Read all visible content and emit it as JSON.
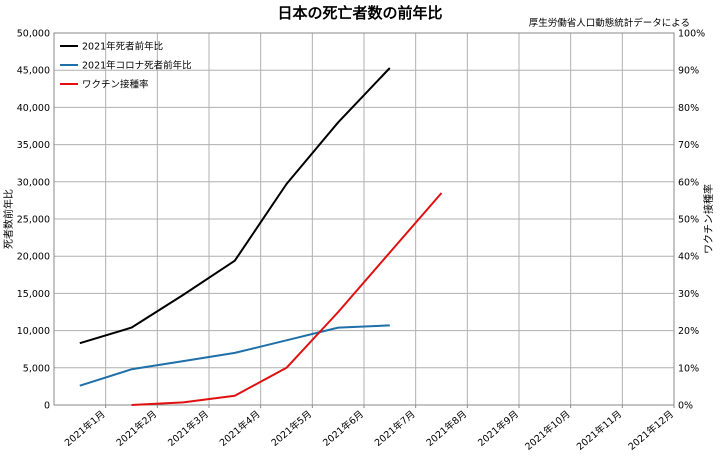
{
  "chart_data": {
    "type": "line",
    "title": "日本の死亡者数の前年比",
    "source_note": "厚生労働省人口動態統計データによる",
    "ylabel": "死者数前年比",
    "y2label": "ワクチン接種率",
    "categories": [
      "2021年1月",
      "2021年2月",
      "2021年3月",
      "2021年4月",
      "2021年5月",
      "2021年6月",
      "2021年7月",
      "2021年8月",
      "2021年9月",
      "2021年10月",
      "2021年11月",
      "2021年12月"
    ],
    "ylim": [
      0,
      50000
    ],
    "y2lim": [
      0,
      100
    ],
    "yticks": [
      "0",
      "5,000",
      "10,000",
      "15,000",
      "20,000",
      "25,000",
      "30,000",
      "35,000",
      "40,000",
      "45,000",
      "50,000"
    ],
    "y2ticks": [
      "0%",
      "10%",
      "20%",
      "30%",
      "40%",
      "50%",
      "60%",
      "70%",
      "80%",
      "90%",
      "100%"
    ],
    "grid": true,
    "legend_position": "top-left",
    "series": [
      {
        "name": "2021年死者前年比",
        "axis": "left",
        "color": "#000000",
        "values": [
          8300,
          10400,
          14800,
          19400,
          29700,
          38000,
          45300,
          null,
          null,
          null,
          null,
          null
        ]
      },
      {
        "name": "2021年コロナ死者前年比",
        "axis": "left",
        "color": "#1f6fa8",
        "values": [
          2600,
          4800,
          5900,
          7000,
          8700,
          10400,
          10700,
          null,
          null,
          null,
          null,
          null
        ]
      },
      {
        "name": "ワクチン接種率",
        "axis": "right",
        "color": "#e01010",
        "values": [
          null,
          0,
          0.7,
          2.5,
          10,
          25,
          41,
          57,
          null,
          null,
          null,
          null
        ]
      }
    ]
  }
}
